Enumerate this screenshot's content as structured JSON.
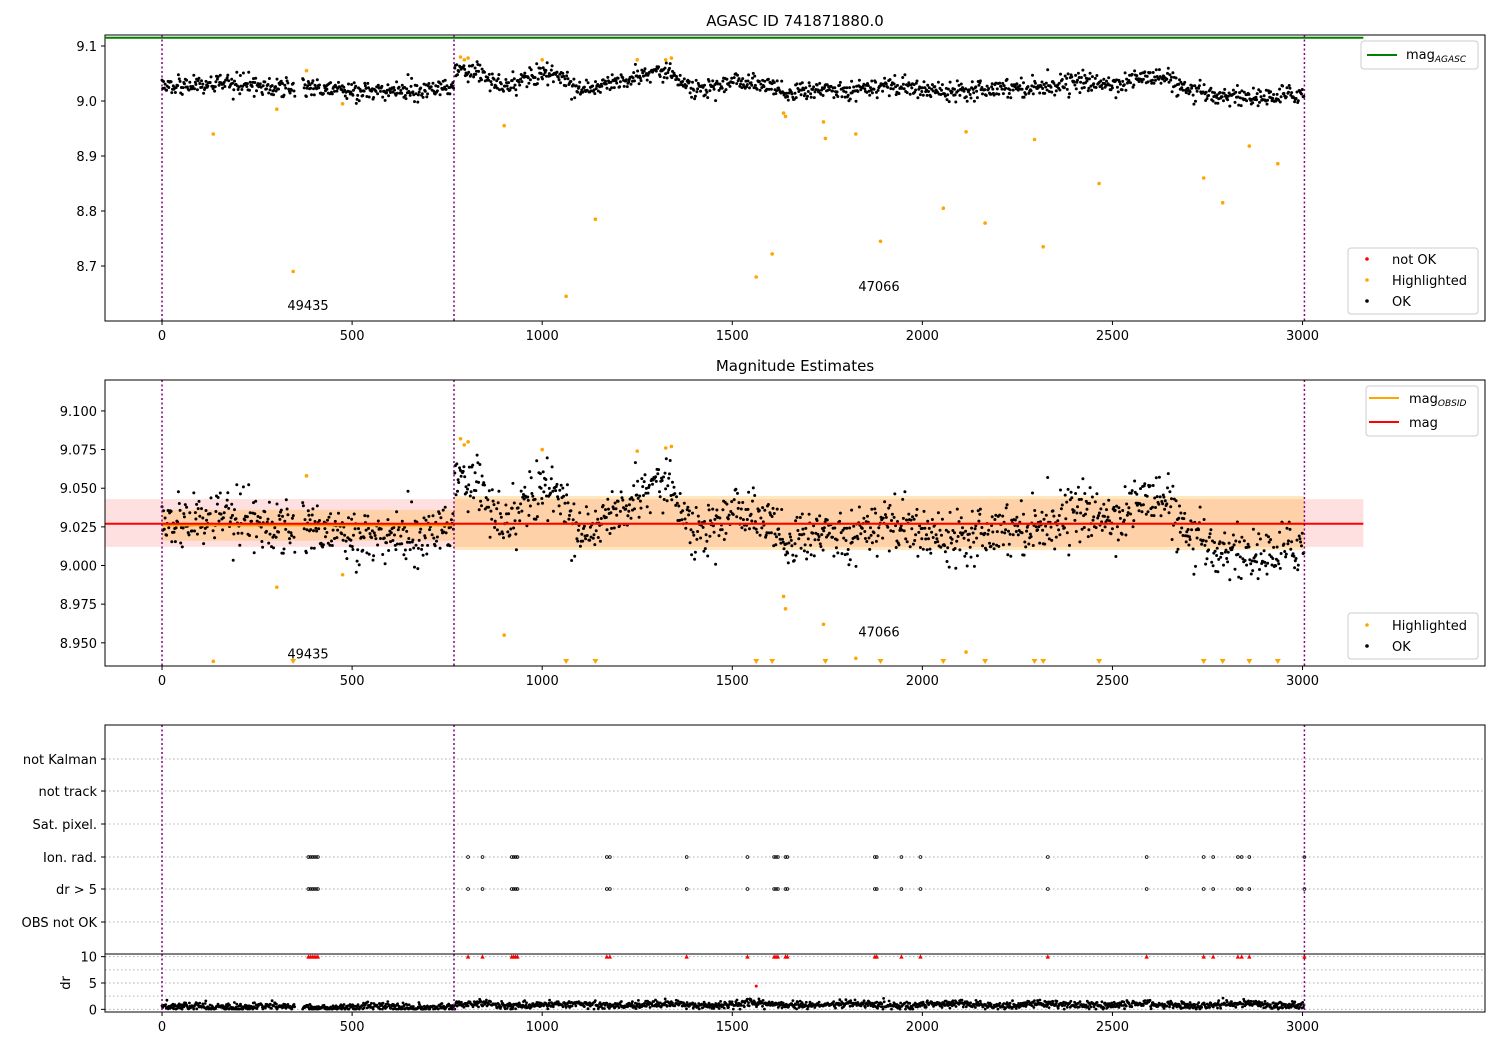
{
  "chart_data": [
    {
      "type": "scatter",
      "title": "AGASC ID 741871880.0",
      "ylim": [
        8.6,
        9.12
      ],
      "xlim": [
        -150,
        3480
      ],
      "xticks": [
        0,
        500,
        1000,
        1500,
        2000,
        2500,
        3000
      ],
      "yticks": [
        8.7,
        8.8,
        8.9,
        9.0,
        9.1
      ],
      "ytick_labels": [
        "8.7",
        "8.8",
        "8.9",
        "9.0",
        "9.1"
      ],
      "mag_agasc": 9.115,
      "mag_agasc_xrange": [
        -150,
        3160
      ],
      "obs_boundaries": [
        0,
        768,
        3005
      ],
      "obsid_labels": [
        {
          "text": "49435",
          "x": 384,
          "y": 8.62
        },
        {
          "text": "47066",
          "x": 1886,
          "y": 8.655
        }
      ],
      "legend_top": [
        {
          "label": "mag",
          "sub": "AGASC",
          "color": "#008000",
          "kind": "line"
        }
      ],
      "legend_bottom": [
        {
          "label": "not OK",
          "color": "#ff0000",
          "kind": "dot"
        },
        {
          "label": "Highlighted",
          "color": "#ffa500",
          "kind": "dot"
        },
        {
          "label": "OK",
          "color": "#000000",
          "kind": "dot"
        }
      ],
      "ok_segments": [
        {
          "x": [
            0,
            150,
            300,
            350
          ],
          "y": [
            9.03,
            9.03,
            9.025,
            9.02
          ]
        },
        {
          "x": [
            370,
            500,
            650,
            768
          ],
          "y": [
            9.03,
            9.015,
            9.02,
            9.025
          ]
        },
        {
          "x": [
            770,
            820,
            900,
            1000,
            1050,
            1100,
            1200,
            1300,
            1350,
            1400,
            1500,
            1600,
            1650,
            1700,
            1800,
            1900,
            2000,
            2100,
            2200,
            2300,
            2400,
            2500,
            2600,
            2650,
            2700,
            2800,
            2900,
            3005
          ],
          "y": [
            9.06,
            9.055,
            9.025,
            9.05,
            9.045,
            9.02,
            9.035,
            9.055,
            9.05,
            9.02,
            9.035,
            9.03,
            9.01,
            9.02,
            9.02,
            9.03,
            9.02,
            9.02,
            9.025,
            9.025,
            9.035,
            9.03,
            9.045,
            9.04,
            9.015,
            9.01,
            9.005,
            9.015
          ]
        }
      ],
      "highlighted": [
        [
          135,
          8.94
        ],
        [
          302,
          8.985
        ],
        [
          345,
          8.69
        ],
        [
          380,
          9.055
        ],
        [
          475,
          8.995
        ],
        [
          900,
          8.955
        ],
        [
          1063,
          8.645
        ],
        [
          1140,
          8.785
        ],
        [
          1250,
          9.075
        ],
        [
          1325,
          9.075
        ],
        [
          1340,
          9.078
        ],
        [
          1563,
          8.68
        ],
        [
          1605,
          8.722
        ],
        [
          1635,
          8.978
        ],
        [
          1640,
          8.972
        ],
        [
          1740,
          8.962
        ],
        [
          1745,
          8.932
        ],
        [
          1825,
          8.94
        ],
        [
          1890,
          8.745
        ],
        [
          2055,
          8.805
        ],
        [
          2115,
          8.944
        ],
        [
          2165,
          8.778
        ],
        [
          2295,
          8.93
        ],
        [
          2318,
          8.735
        ],
        [
          2465,
          8.85
        ],
        [
          2740,
          8.86
        ],
        [
          2790,
          8.815
        ],
        [
          2860,
          8.918
        ],
        [
          2935,
          8.886
        ],
        [
          785,
          9.08
        ],
        [
          795,
          9.075
        ],
        [
          805,
          9.078
        ],
        [
          1000,
          9.075
        ]
      ]
    },
    {
      "type": "scatter",
      "title": "Magnitude Estimates",
      "ylim": [
        8.935,
        9.12
      ],
      "xlim": [
        -150,
        3480
      ],
      "xticks": [
        0,
        500,
        1000,
        1500,
        2000,
        2500,
        3000
      ],
      "yticks": [
        8.95,
        8.975,
        9.0,
        9.025,
        9.05,
        9.075,
        9.1
      ],
      "ytick_labels": [
        "8.950",
        "8.975",
        "9.000",
        "9.025",
        "9.050",
        "9.075",
        "9.100"
      ],
      "mag": 9.027,
      "mag_band": [
        9.012,
        9.043
      ],
      "mag_xrange": [
        -150,
        3160
      ],
      "obsid_mag": [
        {
          "x": [
            0,
            768
          ],
          "y": 9.026,
          "band": [
            9.016,
            9.036
          ]
        },
        {
          "x": [
            768,
            3005
          ],
          "y": 9.027,
          "band": [
            9.01,
            9.045
          ]
        }
      ],
      "obs_boundaries": [
        0,
        768,
        3005
      ],
      "obsid_labels": [
        {
          "text": "49435",
          "x": 384,
          "y": 8.94
        },
        {
          "text": "47066",
          "x": 1886,
          "y": 8.954
        }
      ],
      "legend_top": [
        {
          "label": "mag",
          "sub": "OBSID",
          "color": "#ffa500",
          "kind": "line"
        },
        {
          "label": "mag",
          "sub": "",
          "color": "#ff0000",
          "kind": "line"
        }
      ],
      "legend_bottom": [
        {
          "label": "Highlighted",
          "color": "#ffa500",
          "kind": "dot"
        },
        {
          "label": "OK",
          "color": "#000000",
          "kind": "dot"
        }
      ],
      "highlighted": [
        [
          135,
          8.938
        ],
        [
          302,
          8.986
        ],
        [
          380,
          9.058
        ],
        [
          475,
          8.994
        ],
        [
          900,
          8.955
        ],
        [
          1635,
          8.98
        ],
        [
          1640,
          8.972
        ],
        [
          1740,
          8.962
        ],
        [
          1825,
          8.94
        ],
        [
          2115,
          8.944
        ],
        [
          785,
          9.082
        ],
        [
          795,
          9.078
        ],
        [
          805,
          9.08
        ],
        [
          1000,
          9.075
        ],
        [
          1250,
          9.074
        ],
        [
          1325,
          9.076
        ],
        [
          1340,
          9.077
        ]
      ],
      "low_markers": [
        345,
        1063,
        1140,
        1563,
        1605,
        1745,
        1890,
        2055,
        2165,
        2295,
        2318,
        2465,
        2740,
        2790,
        2860,
        2935
      ]
    },
    {
      "type": "scatter",
      "title": "",
      "xlim": [
        -150,
        3480
      ],
      "flag_rows": [
        "not Kalman",
        "not track",
        "Sat. pixel.",
        "Ion. rad.",
        "dr > 5",
        "OBS not OK"
      ],
      "flag_points": {
        "Ion. rad.": [
          385,
          390,
          395,
          400,
          405,
          410,
          805,
          843,
          920,
          925,
          930,
          935,
          1170,
          1178,
          1380,
          1540,
          1610,
          1615,
          1620,
          1640,
          1645,
          1875,
          1880,
          1945,
          1995,
          2330,
          2590,
          2740,
          2765,
          2830,
          2840,
          2860,
          3005
        ],
        "dr > 5": [
          385,
          390,
          395,
          400,
          405,
          410,
          805,
          843,
          920,
          925,
          930,
          935,
          1170,
          1178,
          1380,
          1540,
          1610,
          1615,
          1620,
          1640,
          1645,
          1875,
          1880,
          1945,
          1995,
          2330,
          2590,
          2740,
          2765,
          2830,
          2840,
          2860,
          3005
        ]
      },
      "obs_boundaries": [
        0,
        768,
        3005
      ]
    },
    {
      "type": "scatter",
      "title": "",
      "ylabel": "dr",
      "ylim": [
        -0.5,
        10.5
      ],
      "xlim": [
        -150,
        3480
      ],
      "xticks": [
        0,
        500,
        1000,
        1500,
        2000,
        2500,
        3000
      ],
      "yticks": [
        0,
        5,
        10
      ],
      "ytick_labels": [
        "0",
        "5",
        "10"
      ],
      "clipped_x": [
        385,
        390,
        395,
        400,
        405,
        410,
        805,
        843,
        920,
        925,
        930,
        935,
        1170,
        1178,
        1380,
        1540,
        1610,
        1615,
        1620,
        1640,
        1645,
        1875,
        1880,
        1945,
        1995,
        2330,
        2590,
        2740,
        2765,
        2830,
        2840,
        2860,
        3005
      ],
      "outlier": [
        1563,
        4.4
      ],
      "obs_boundaries": [
        0,
        768,
        3005
      ]
    }
  ]
}
